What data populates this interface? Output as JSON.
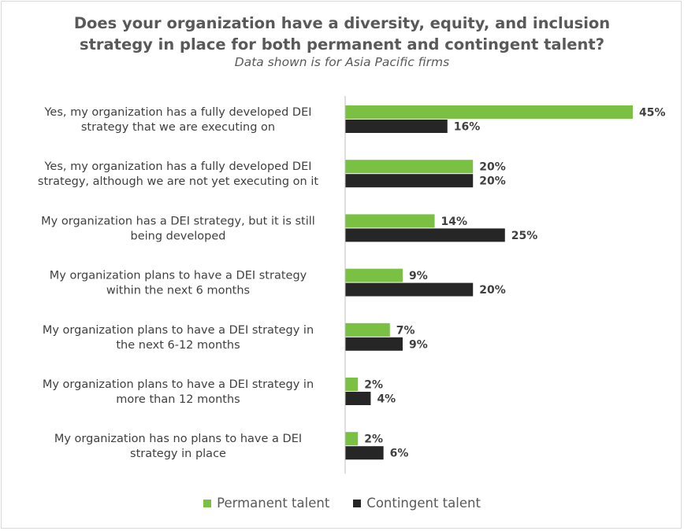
{
  "chart_data": {
    "type": "bar",
    "orientation": "horizontal",
    "title": "Does your organization have a diversity, equity, and inclusion strategy in place for both permanent and contingent talent?",
    "subtitle": "Data shown is for Asia Pacific firms",
    "categories": [
      [
        "Yes, my organization has a fully developed DEI",
        "strategy that we are executing on"
      ],
      [
        "Yes, my organization has a fully developed DEI",
        "strategy, although we are not yet executing on it"
      ],
      [
        "My organization has a DEI strategy, but it is still",
        "being developed"
      ],
      [
        "My organization plans to have a DEI strategy",
        "within the next 6 months"
      ],
      [
        "My organization plans to have a DEI strategy in",
        "the next 6-12 months"
      ],
      [
        "My organization plans to have a DEI strategy in",
        "more than 12 months"
      ],
      [
        "My organization has no plans to have a DEI",
        "strategy in place"
      ]
    ],
    "series": [
      {
        "name": "Permanent talent",
        "color": "#7ac143",
        "values": [
          45,
          20,
          14,
          9,
          7,
          2,
          2
        ],
        "labels": [
          "45%",
          "20%",
          "14%",
          "9%",
          "7%",
          "2%",
          "2%"
        ]
      },
      {
        "name": "Contingent talent",
        "color": "#262626",
        "values": [
          16,
          20,
          25,
          20,
          9,
          4,
          6
        ],
        "labels": [
          "16%",
          "20%",
          "25%",
          "20%",
          "9%",
          "4%",
          "6%"
        ]
      }
    ],
    "xlim": [
      0,
      45
    ],
    "grid": false,
    "legend_position": "bottom"
  }
}
